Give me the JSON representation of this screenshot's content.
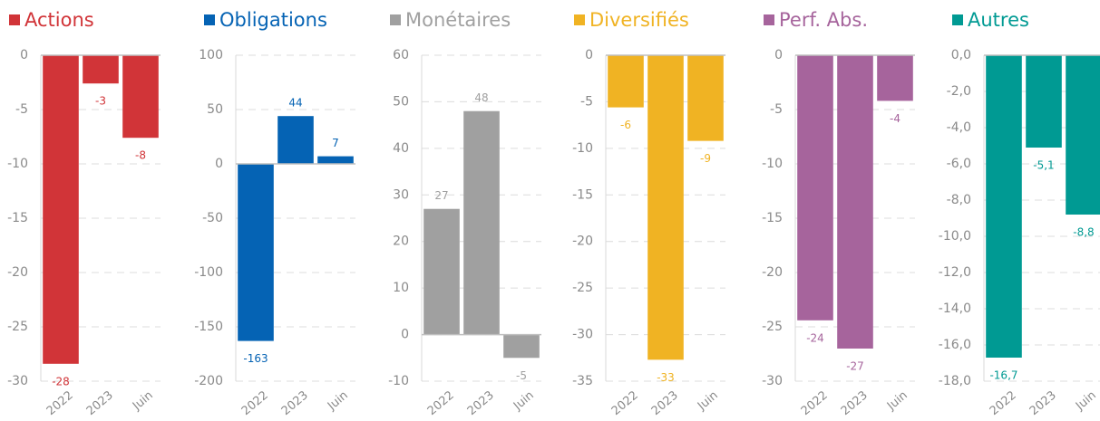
{
  "chart_data": [
    {
      "type": "bar",
      "title": "Actions",
      "categories": [
        "2022",
        "2023",
        "Juin"
      ],
      "values": [
        -28.4,
        -2.6,
        -7.6
      ],
      "value_labels": [
        "-28",
        "-3",
        "-8"
      ],
      "color": "#d13438",
      "ylim": [
        -30,
        0
      ],
      "yticks": [
        0,
        -5,
        -10,
        -15,
        -20,
        -25,
        -30
      ],
      "grid": true
    },
    {
      "type": "bar",
      "title": "Obligations",
      "categories": [
        "2022",
        "2023",
        "Juin"
      ],
      "values": [
        -163,
        44,
        7
      ],
      "color": "#0563b4",
      "ylim": [
        -200,
        100
      ],
      "yticks": [
        100,
        50,
        0,
        -50,
        -100,
        -150,
        -200
      ],
      "grid": true
    },
    {
      "type": "bar",
      "title": "Monétaires",
      "categories": [
        "2022",
        "2023",
        "Juin"
      ],
      "values": [
        27,
        48,
        -5
      ],
      "color": "#a0a0a0",
      "ylim": [
        -10,
        60
      ],
      "yticks": [
        60,
        50,
        40,
        30,
        20,
        10,
        0,
        -10
      ],
      "grid": true
    },
    {
      "type": "bar",
      "title": "Diversifiés",
      "categories": [
        "2022",
        "2023",
        "Juin"
      ],
      "values": [
        -5.6,
        -32.7,
        -9.2
      ],
      "value_labels": [
        "-6",
        "-33",
        "-9"
      ],
      "color": "#f0b323",
      "ylim": [
        -35,
        0
      ],
      "yticks": [
        0,
        -5,
        -10,
        -15,
        -20,
        -25,
        -30,
        -35
      ],
      "grid": true
    },
    {
      "type": "bar",
      "title": "Perf. Abs.",
      "categories": [
        "2022",
        "2023",
        "Juin"
      ],
      "values": [
        -24.4,
        -27,
        -4.2
      ],
      "value_labels": [
        "-24",
        "-27",
        "-4"
      ],
      "color": "#a6649c",
      "ylim": [
        -30,
        0
      ],
      "yticks": [
        0,
        -5,
        -10,
        -15,
        -20,
        -25,
        -30
      ],
      "grid": true
    },
    {
      "type": "bar",
      "title": "Autres",
      "categories": [
        "2022",
        "2023",
        "Juin"
      ],
      "values": [
        -16.7,
        -5.1,
        -8.8
      ],
      "value_labels": [
        "-16,7",
        "-5,1",
        "-8,8"
      ],
      "color": "#009a93",
      "ylim": [
        -18,
        0
      ],
      "yticks": [
        {
          "value": 0,
          "label": "0,0"
        },
        {
          "value": -2,
          "label": "-2,0"
        },
        {
          "value": -4,
          "label": "-4,0"
        },
        {
          "value": -6,
          "label": "-6,0"
        },
        {
          "value": -8,
          "label": "-8,0"
        },
        {
          "value": -10,
          "label": "-10,0"
        },
        {
          "value": -12,
          "label": "-12,0"
        },
        {
          "value": -14,
          "label": "-14,0"
        },
        {
          "value": -16,
          "label": "-16,0"
        },
        {
          "value": -18,
          "label": "-18,0"
        }
      ],
      "grid": true
    }
  ]
}
